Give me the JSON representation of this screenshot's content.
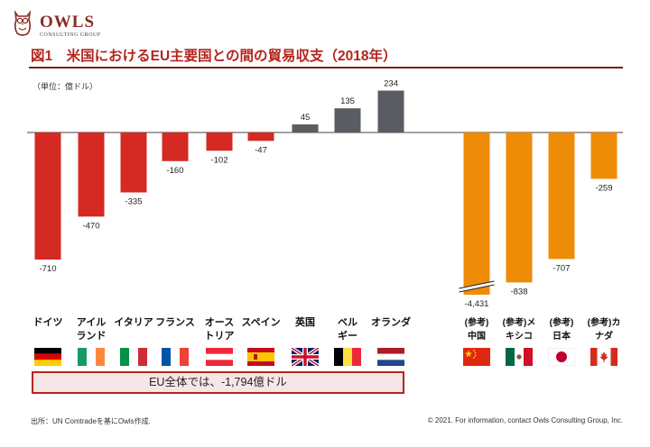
{
  "logo": {
    "name": "OWLS",
    "tagline": "CONSULTING GROUP"
  },
  "title": "図1　米国におけるEU主要国との間の貿易収支（2018年）",
  "unit_label": "（単位：億ドル）",
  "chart_data": {
    "type": "bar",
    "title": "図1　米国におけるEU主要国との間の貿易収支（2018年）",
    "ylabel": "（単位：億ドル）",
    "categories": [
      [
        "ドイツ"
      ],
      [
        "アイル",
        "ランド"
      ],
      [
        "イタリア"
      ],
      [
        "フランス"
      ],
      [
        "オース",
        "トリア"
      ],
      [
        "スペイン"
      ],
      [
        "英国"
      ],
      [
        "ベル",
        "ギー"
      ],
      [
        "オランダ"
      ],
      [
        "(参考)",
        "中国"
      ],
      [
        "(参考)メ",
        "キシコ"
      ],
      [
        "(参考)",
        "日本"
      ],
      [
        "(参考)カ",
        "ナダ"
      ]
    ],
    "values": [
      -710,
      -470,
      -335,
      -160,
      -102,
      -47,
      45,
      135,
      234,
      -4431,
      -838,
      -707,
      -259
    ],
    "value_labels": [
      "-710",
      "-470",
      "-335",
      "-160",
      "-102",
      "-47",
      "45",
      "135",
      "234",
      "-4,431",
      "-838",
      "-707",
      "-259"
    ],
    "groups": [
      "eu",
      "eu",
      "eu",
      "eu",
      "eu",
      "eu",
      "eu",
      "eu",
      "eu",
      "ref",
      "ref",
      "ref",
      "ref"
    ],
    "axis_break": {
      "index": 9,
      "note": "bar truncated (broken axis)"
    },
    "colors": {
      "deficit": "#d42a23",
      "surplus": "#595c61",
      "reference": "#ee8c08"
    },
    "grid": false
  },
  "flags": [
    "germany",
    "ireland",
    "italy",
    "france",
    "austria",
    "spain",
    "uk",
    "belgium",
    "netherlands",
    "china",
    "mexico",
    "japan",
    "canada"
  ],
  "eu_total": "EU全体では、-1,794億ドル",
  "source": "出所：UN Comtradeを基にOwls作成.",
  "copyright": "© 2021. For information, contact Owls Consulting Group, Inc."
}
